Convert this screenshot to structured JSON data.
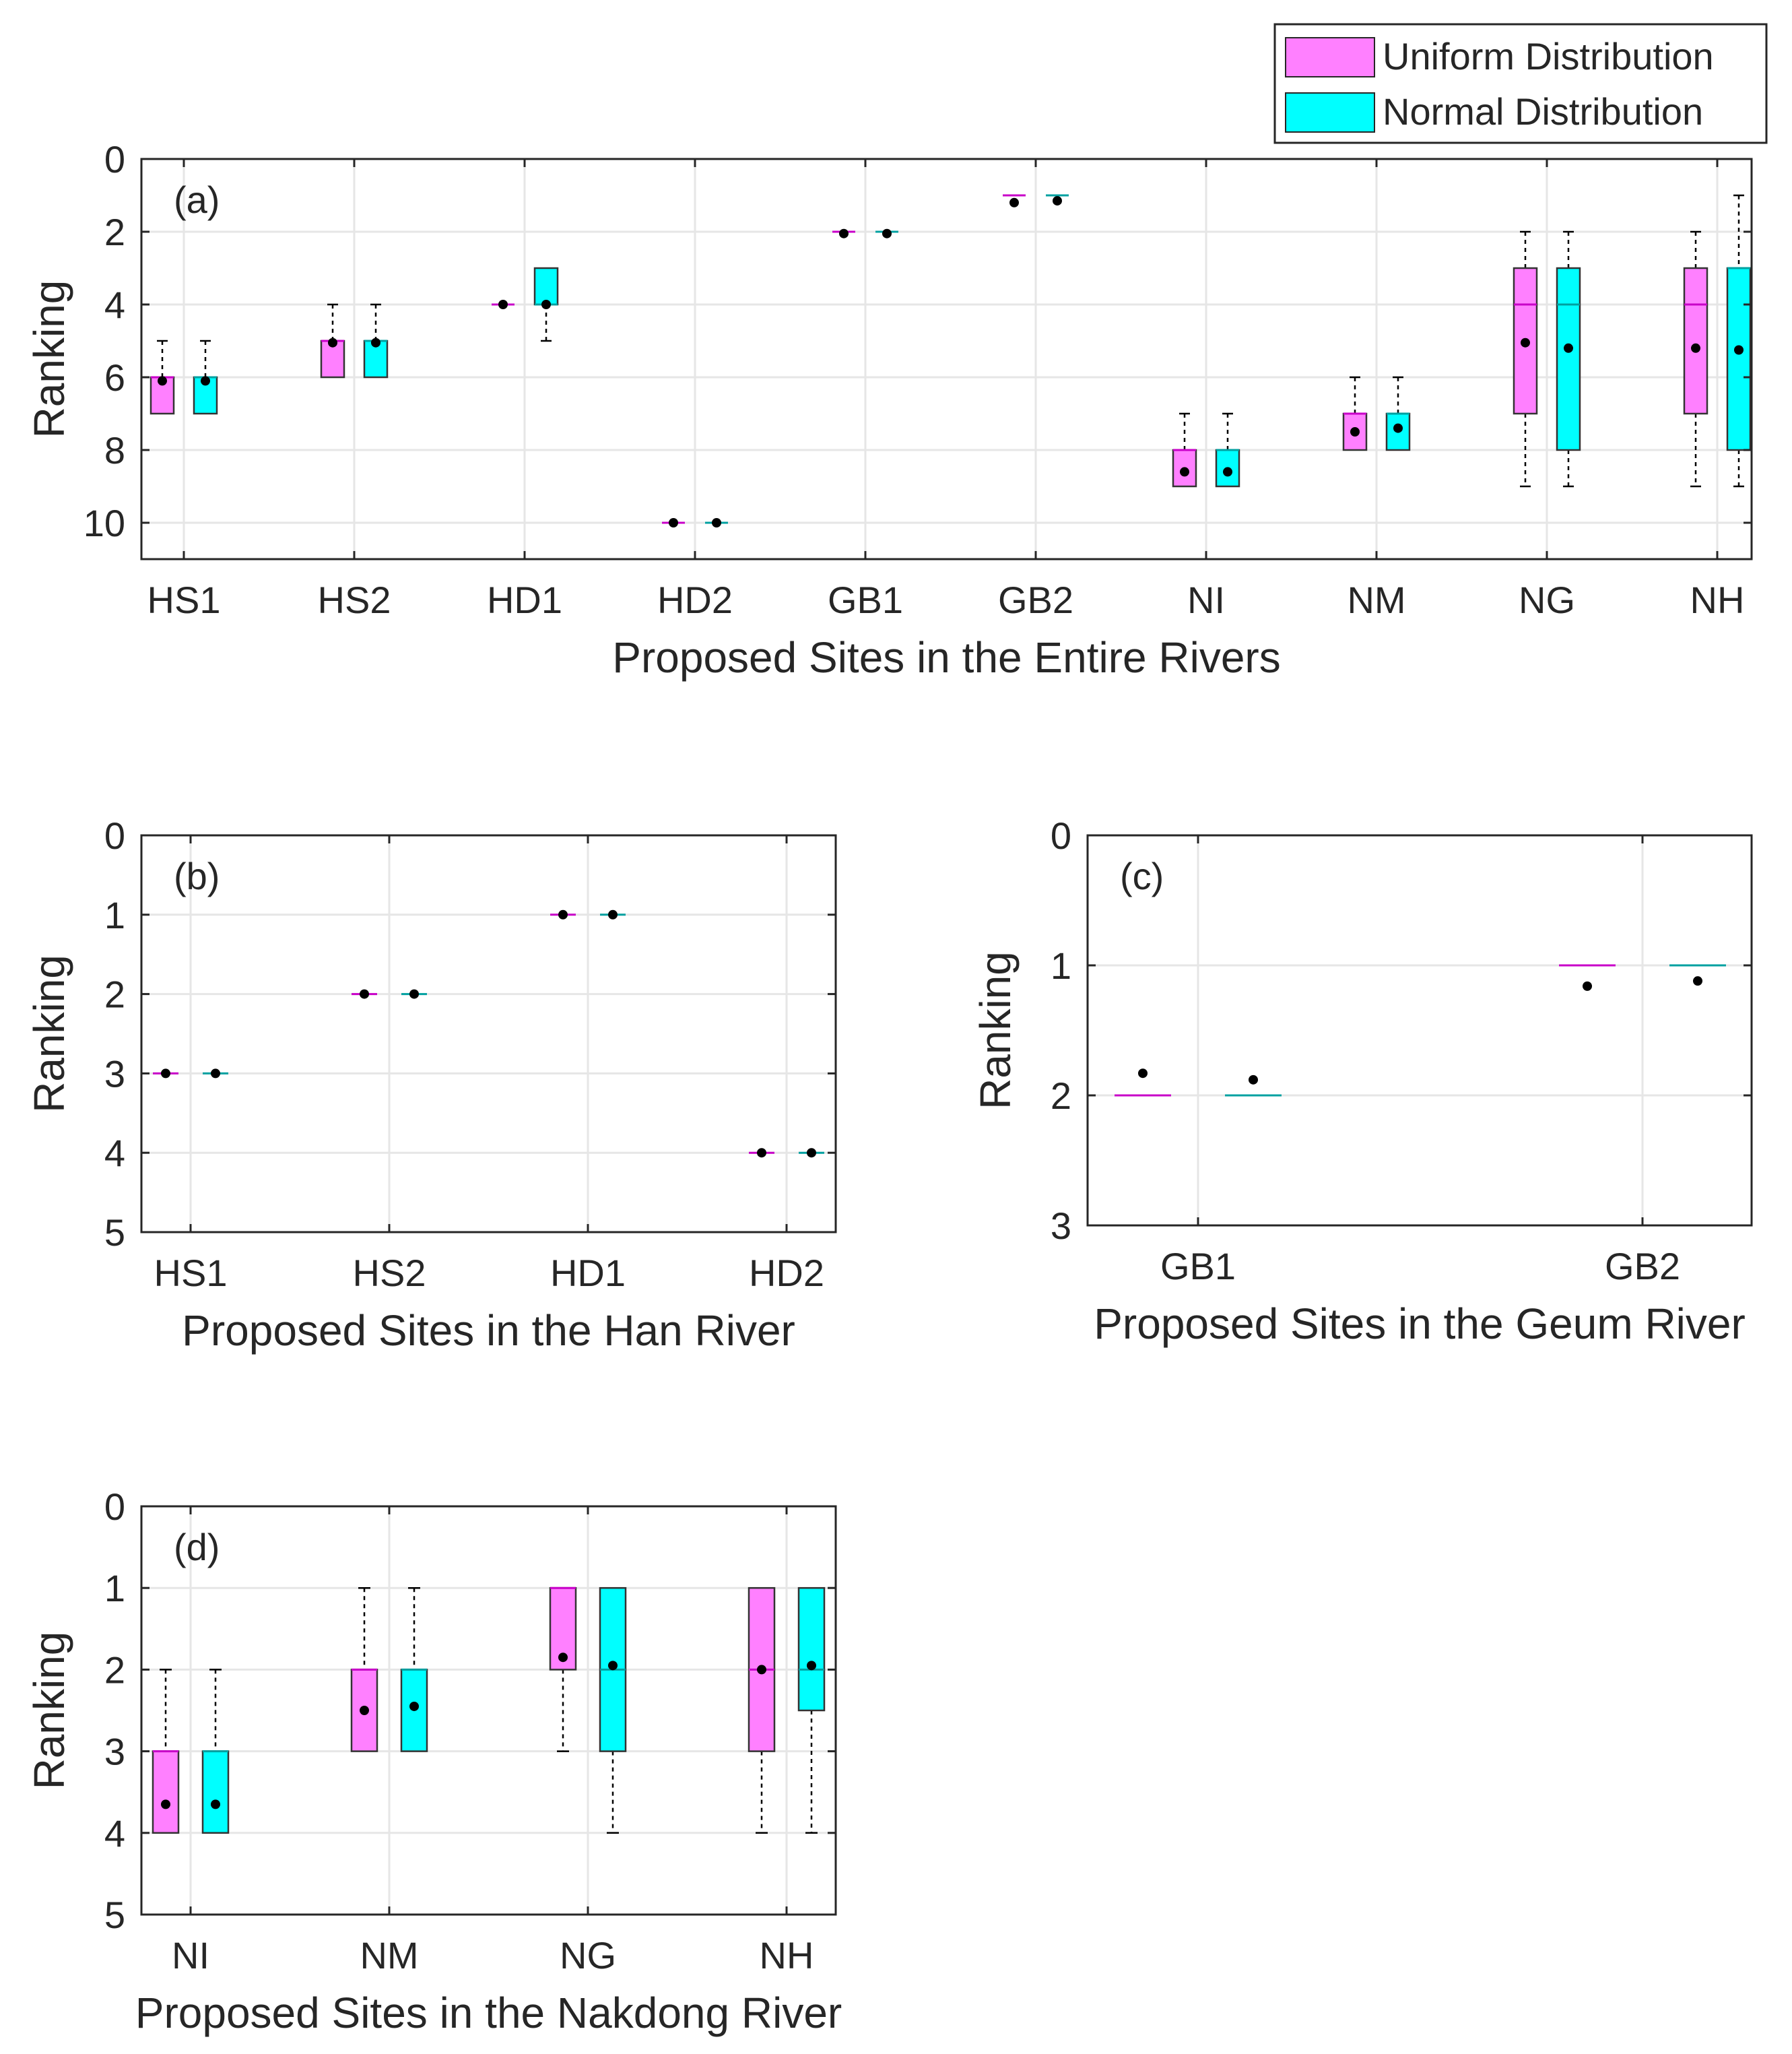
{
  "legend": {
    "entries": [
      {
        "label": "Uniform Distribution",
        "color": "#ff80ff"
      },
      {
        "label": "Normal Distribution",
        "color": "#00ffff"
      }
    ],
    "placement": "top-right"
  },
  "colors": {
    "uniform_fill": "#ff80ff",
    "normal_fill": "#00ffff",
    "uniform_median": "#c800c8",
    "normal_median": "#00a0a0",
    "mean_marker": "#000000",
    "grid": "#e6e6e6",
    "axis": "#262626",
    "whisker": "#000000"
  },
  "chart_data": [
    {
      "id": "a",
      "type": "box",
      "panel_label": "(a)",
      "xlabel": "Proposed Sites in the Entire Rivers",
      "ylabel": "Ranking",
      "ylim": [
        0,
        11
      ],
      "y_reversed": true,
      "yticks": [
        0,
        2,
        4,
        6,
        8,
        10
      ],
      "grid": true,
      "categories": [
        "HS1",
        "HS2",
        "HD1",
        "HD2",
        "GB1",
        "GB2",
        "NI",
        "NM",
        "NG",
        "NH"
      ],
      "series": [
        {
          "name": "Uniform Distribution",
          "boxes": [
            {
              "min": 5,
              "q1": 6,
              "median": 6,
              "q3": 7,
              "max": 7,
              "mean": 6.1
            },
            {
              "min": 4,
              "q1": 5,
              "median": 5,
              "q3": 6,
              "max": 6,
              "mean": 5.05
            },
            {
              "min": 4,
              "q1": 4,
              "median": 4,
              "q3": 4,
              "max": 4,
              "mean": 4.0
            },
            {
              "min": 10,
              "q1": 10,
              "median": 10,
              "q3": 10,
              "max": 10,
              "mean": 10.0
            },
            {
              "min": 2,
              "q1": 2,
              "median": 2,
              "q3": 2,
              "max": 2,
              "mean": 2.05
            },
            {
              "min": 1,
              "q1": 1,
              "median": 1,
              "q3": 1,
              "max": 1,
              "mean": 1.2
            },
            {
              "min": 7,
              "q1": 8,
              "median": 8,
              "q3": 9,
              "max": 9,
              "mean": 8.6
            },
            {
              "min": 6,
              "q1": 7,
              "median": 7,
              "q3": 8,
              "max": 8,
              "mean": 7.5
            },
            {
              "min": 2,
              "q1": 3,
              "median": 4,
              "q3": 7,
              "max": 9,
              "mean": 5.05
            },
            {
              "min": 2,
              "q1": 3,
              "median": 4,
              "q3": 7,
              "max": 9,
              "mean": 5.2
            }
          ]
        },
        {
          "name": "Normal Distribution",
          "boxes": [
            {
              "min": 5,
              "q1": 6,
              "median": 6,
              "q3": 7,
              "max": 7,
              "mean": 6.1
            },
            {
              "min": 4,
              "q1": 5,
              "median": 5,
              "q3": 6,
              "max": 6,
              "mean": 5.05
            },
            {
              "min": 3,
              "q1": 3,
              "median": 4,
              "q3": 4,
              "max": 5,
              "mean": 4.0
            },
            {
              "min": 10,
              "q1": 10,
              "median": 10,
              "q3": 10,
              "max": 10,
              "mean": 10.0
            },
            {
              "min": 2,
              "q1": 2,
              "median": 2,
              "q3": 2,
              "max": 2,
              "mean": 2.05
            },
            {
              "min": 1,
              "q1": 1,
              "median": 1,
              "q3": 1,
              "max": 1,
              "mean": 1.15
            },
            {
              "min": 7,
              "q1": 8,
              "median": 8,
              "q3": 9,
              "max": 9,
              "mean": 8.6
            },
            {
              "min": 6,
              "q1": 7,
              "median": 7,
              "q3": 8,
              "max": 8,
              "mean": 7.4
            },
            {
              "min": 2,
              "q1": 3,
              "median": 4,
              "q3": 8,
              "max": 9,
              "mean": 5.2
            },
            {
              "min": 1,
              "q1": 3,
              "median": 3,
              "q3": 8,
              "max": 9,
              "mean": 5.25
            }
          ]
        }
      ]
    },
    {
      "id": "b",
      "type": "box",
      "panel_label": "(b)",
      "xlabel": "Proposed Sites in the Han River",
      "ylabel": "Ranking",
      "ylim": [
        0,
        5
      ],
      "y_reversed": true,
      "yticks": [
        0,
        1,
        2,
        3,
        4,
        5
      ],
      "grid": true,
      "categories": [
        "HS1",
        "HS2",
        "HD1",
        "HD2"
      ],
      "series": [
        {
          "name": "Uniform Distribution",
          "boxes": [
            {
              "min": 3,
              "q1": 3,
              "median": 3,
              "q3": 3,
              "max": 3,
              "mean": 3.0
            },
            {
              "min": 2,
              "q1": 2,
              "median": 2,
              "q3": 2,
              "max": 2,
              "mean": 2.0
            },
            {
              "min": 1,
              "q1": 1,
              "median": 1,
              "q3": 1,
              "max": 1,
              "mean": 1.0
            },
            {
              "min": 4,
              "q1": 4,
              "median": 4,
              "q3": 4,
              "max": 4,
              "mean": 4.0
            }
          ]
        },
        {
          "name": "Normal Distribution",
          "boxes": [
            {
              "min": 3,
              "q1": 3,
              "median": 3,
              "q3": 3,
              "max": 3,
              "mean": 3.0
            },
            {
              "min": 2,
              "q1": 2,
              "median": 2,
              "q3": 2,
              "max": 2,
              "mean": 2.0
            },
            {
              "min": 1,
              "q1": 1,
              "median": 1,
              "q3": 1,
              "max": 1,
              "mean": 1.0
            },
            {
              "min": 4,
              "q1": 4,
              "median": 4,
              "q3": 4,
              "max": 4,
              "mean": 4.0
            }
          ]
        }
      ]
    },
    {
      "id": "c",
      "type": "box",
      "panel_label": "(c)",
      "xlabel": "Proposed Sites in the Geum River",
      "ylabel": "Ranking",
      "ylim": [
        0,
        3
      ],
      "y_reversed": true,
      "yticks": [
        0,
        1,
        2,
        3
      ],
      "grid": true,
      "categories": [
        "GB1",
        "GB2"
      ],
      "series": [
        {
          "name": "Uniform Distribution",
          "boxes": [
            {
              "min": 2,
              "q1": 2,
              "median": 2,
              "q3": 2,
              "max": 2,
              "mean": 1.83
            },
            {
              "min": 1,
              "q1": 1,
              "median": 1,
              "q3": 1,
              "max": 1,
              "mean": 1.16
            }
          ]
        },
        {
          "name": "Normal Distribution",
          "boxes": [
            {
              "min": 2,
              "q1": 2,
              "median": 2,
              "q3": 2,
              "max": 2,
              "mean": 1.88
            },
            {
              "min": 1,
              "q1": 1,
              "median": 1,
              "q3": 1,
              "max": 1,
              "mean": 1.12
            }
          ]
        }
      ]
    },
    {
      "id": "d",
      "type": "box",
      "panel_label": "(d)",
      "xlabel": "Proposed Sites in the Nakdong River",
      "ylabel": "Ranking",
      "ylim": [
        0,
        5
      ],
      "y_reversed": true,
      "yticks": [
        0,
        1,
        2,
        3,
        4,
        5
      ],
      "grid": true,
      "categories": [
        "NI",
        "NM",
        "NG",
        "NH"
      ],
      "series": [
        {
          "name": "Uniform Distribution",
          "boxes": [
            {
              "min": 2,
              "q1": 3,
              "median": 3,
              "q3": 4,
              "max": 4,
              "mean": 3.65
            },
            {
              "min": 1,
              "q1": 2,
              "median": 2,
              "q3": 3,
              "max": 3,
              "mean": 2.5
            },
            {
              "min": 1,
              "q1": 1,
              "median": 1,
              "q3": 2,
              "max": 3,
              "mean": 1.85
            },
            {
              "min": 1,
              "q1": 1,
              "median": 2,
              "q3": 3,
              "max": 4,
              "mean": 2.0
            }
          ]
        },
        {
          "name": "Normal Distribution",
          "boxes": [
            {
              "min": 2,
              "q1": 3,
              "median": 3,
              "q3": 4,
              "max": 4,
              "mean": 3.65
            },
            {
              "min": 1,
              "q1": 2,
              "median": 2,
              "q3": 3,
              "max": 3,
              "mean": 2.45
            },
            {
              "min": 1,
              "q1": 1,
              "median": 2,
              "q3": 3,
              "max": 4,
              "mean": 1.95
            },
            {
              "min": 1,
              "q1": 1,
              "median": 2,
              "q3": 2.5,
              "max": 4,
              "mean": 1.95
            }
          ]
        }
      ]
    }
  ]
}
